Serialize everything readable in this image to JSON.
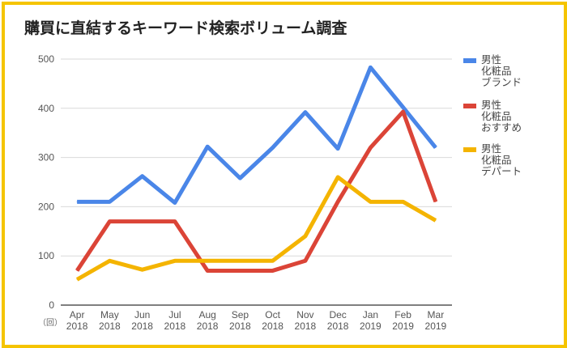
{
  "title": "購買に直結するキーワード検索ボリューム調査",
  "chart_data": {
    "type": "line",
    "title": "購買に直結するキーワード検索ボリューム調査",
    "categories": [
      [
        "Apr",
        "2018"
      ],
      [
        "May",
        "2018"
      ],
      [
        "Jun",
        "2018"
      ],
      [
        "Jul",
        "2018"
      ],
      [
        "Aug",
        "2018"
      ],
      [
        "Sep",
        "2018"
      ],
      [
        "Oct",
        "2018"
      ],
      [
        "Nov",
        "2018"
      ],
      [
        "Dec",
        "2018"
      ],
      [
        "Jan",
        "2019"
      ],
      [
        "Feb",
        "2019"
      ],
      [
        "Mar",
        "2019"
      ]
    ],
    "unit_label": "（回）",
    "ylim": [
      0,
      500
    ],
    "yticks": [
      0,
      100,
      200,
      300,
      400,
      500
    ],
    "grid": true,
    "legend_position": "right",
    "series": [
      {
        "name": [
          "男性",
          "化粧品",
          "ブランド"
        ],
        "color": "#4a86e8",
        "values": [
          210,
          210,
          262,
          208,
          322,
          258,
          320,
          392,
          318,
          483,
          402,
          320
        ]
      },
      {
        "name": [
          "男性",
          "化粧品",
          "おすすめ"
        ],
        "color": "#db4437",
        "values": [
          70,
          170,
          170,
          170,
          70,
          70,
          70,
          90,
          210,
          320,
          393,
          210
        ]
      },
      {
        "name": [
          "男性",
          "化粧品",
          "デパート"
        ],
        "color": "#f4b400",
        "values": [
          52,
          90,
          72,
          90,
          90,
          90,
          90,
          140,
          260,
          210,
          210,
          172
        ]
      }
    ]
  }
}
